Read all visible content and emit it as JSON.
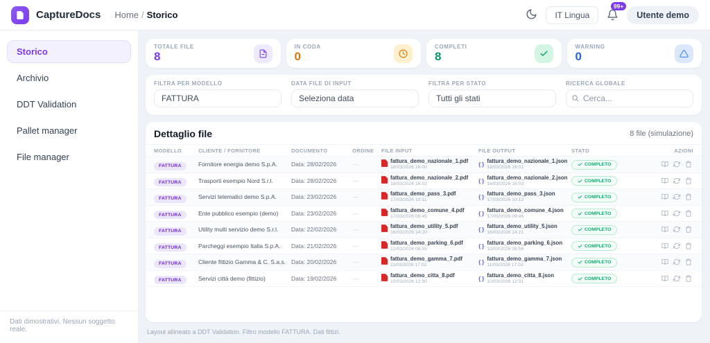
{
  "brand": {
    "name": "CaptureDocs"
  },
  "breadcrumb": {
    "home": "Home",
    "separator": "/",
    "current": "Storico"
  },
  "header": {
    "lang_button": "IT Lingua",
    "notification_count": "99+",
    "user_button": "Utente demo"
  },
  "sidebar": {
    "items": [
      {
        "label": "Storico",
        "active": true
      },
      {
        "label": "Archivio",
        "active": false
      },
      {
        "label": "DDT Validation",
        "active": false
      },
      {
        "label": "Pallet manager",
        "active": false
      },
      {
        "label": "File manager",
        "active": false
      }
    ],
    "footer": "Dati dimostrativi. Nessun soggetto reale."
  },
  "stats": [
    {
      "label": "TOTALE FILE",
      "value": "8",
      "color": "#7c3aed",
      "icon": "file-icon",
      "icon_bg": "#ede9fe"
    },
    {
      "label": "IN CODA",
      "value": "0",
      "color": "#d97706",
      "icon": "clock-icon",
      "icon_bg": "#fdf0cd"
    },
    {
      "label": "COMPLETI",
      "value": "8",
      "color": "#059669",
      "icon": "check-icon",
      "icon_bg": "#d3f5e3"
    },
    {
      "label": "WARNING",
      "value": "0",
      "color": "#2563eb",
      "icon": "alert-triangle-icon",
      "icon_bg": "#dbe7fb"
    }
  ],
  "filters": {
    "model": {
      "label": "FILTRA PER MODELLO",
      "value": "FATTURA"
    },
    "date": {
      "label": "DATA FILE DI INPUT",
      "value": "Seleziona data"
    },
    "status": {
      "label": "FILTRA PER STATO",
      "value": "Tutti gli stati"
    },
    "search": {
      "label": "RICERCA GLOBALE",
      "placeholder": "Cerca..."
    }
  },
  "table": {
    "title": "Dettaglio file",
    "count_label": "8 file (simulazione)",
    "columns": [
      "MODELLO",
      "CLIENTE / FORNITORE",
      "DOCUMENTO",
      "ORDINE",
      "FILE INPUT",
      "FILE OUTPUT",
      "STATO",
      "AZIONI"
    ],
    "rows": [
      {
        "model": "FATTURA",
        "client": "Fornitore energia demo S.p.A.",
        "doc": "Data: 28/02/2026",
        "order": "—",
        "input_file": "fattura_demo_nazionale_1.pdf",
        "input_time": "18/03/2026 16:00",
        "output_file": "fattura_demo_nazionale_1.json",
        "output_time": "18/03/2026 16:01",
        "status": "COMPLETO"
      },
      {
        "model": "FATTURA",
        "client": "Trasporti esempio Nord S.r.l.",
        "doc": "Data: 28/02/2026",
        "order": "—",
        "input_file": "fattura_demo_nazionale_2.pdf",
        "input_time": "18/03/2026 16:02",
        "output_file": "fattura_demo_nazionale_2.json",
        "output_time": "18/03/2026 16:03",
        "status": "COMPLETO"
      },
      {
        "model": "FATTURA",
        "client": "Servizi telematici demo S.p.A.",
        "doc": "Data: 23/02/2026",
        "order": "—",
        "input_file": "fattura_demo_pass_3.pdf",
        "input_time": "17/03/2026 10:11",
        "output_file": "fattura_demo_pass_3.json",
        "output_time": "17/03/2026 10:12",
        "status": "COMPLETO"
      },
      {
        "model": "FATTURA",
        "client": "Ente pubblico esempio (demo)",
        "doc": "Data: 23/02/2026",
        "order": "—",
        "input_file": "fattura_demo_comune_4.pdf",
        "input_time": "17/03/2026 09:45",
        "output_file": "fattura_demo_comune_4.json",
        "output_time": "17/03/2026 09:46",
        "status": "COMPLETO"
      },
      {
        "model": "FATTURA",
        "client": "Utility multi servizio demo S.r.l.",
        "doc": "Data: 22/02/2026",
        "order": "—",
        "input_file": "fattura_demo_utility_5.pdf",
        "input_time": "16/03/2026 14:20",
        "output_file": "fattura_demo_utility_5.json",
        "output_time": "16/03/2026 14:21",
        "status": "COMPLETO"
      },
      {
        "model": "FATTURA",
        "client": "Parcheggi esempio Italia S.p.A.",
        "doc": "Data: 21/02/2026",
        "order": "—",
        "input_file": "fattura_demo_parking_6.pdf",
        "input_time": "12/03/2026 08:55",
        "output_file": "fattura_demo_parking_6.json",
        "output_time": "12/03/2026 08:56",
        "status": "COMPLETO"
      },
      {
        "model": "FATTURA",
        "client": "Cliente fittizio Gamma & C. S.a.s.",
        "doc": "Data: 20/02/2026",
        "order": "—",
        "input_file": "fattura_demo_gamma_7.pdf",
        "input_time": "11/03/2026 17:02",
        "output_file": "fattura_demo_gamma_7.json",
        "output_time": "11/03/2026 17:03",
        "status": "COMPLETO"
      },
      {
        "model": "FATTURA",
        "client": "Servizi città demo (fittizio)",
        "doc": "Data: 19/02/2026",
        "order": "—",
        "input_file": "fattura_demo_citta_8.pdf",
        "input_time": "10/03/2026 12:30",
        "output_file": "fattura_demo_citta_8.json",
        "output_time": "10/03/2026 12:31",
        "status": "COMPLETO"
      }
    ]
  },
  "footer": {
    "note": "Layout allineato a DDT Validation. Filtro modello FATTURA. Dati fittizi."
  },
  "colors": {
    "brand": "#7c3aed",
    "pdf": "#dc2626",
    "json": "#6366f1",
    "success": "#17a673"
  }
}
